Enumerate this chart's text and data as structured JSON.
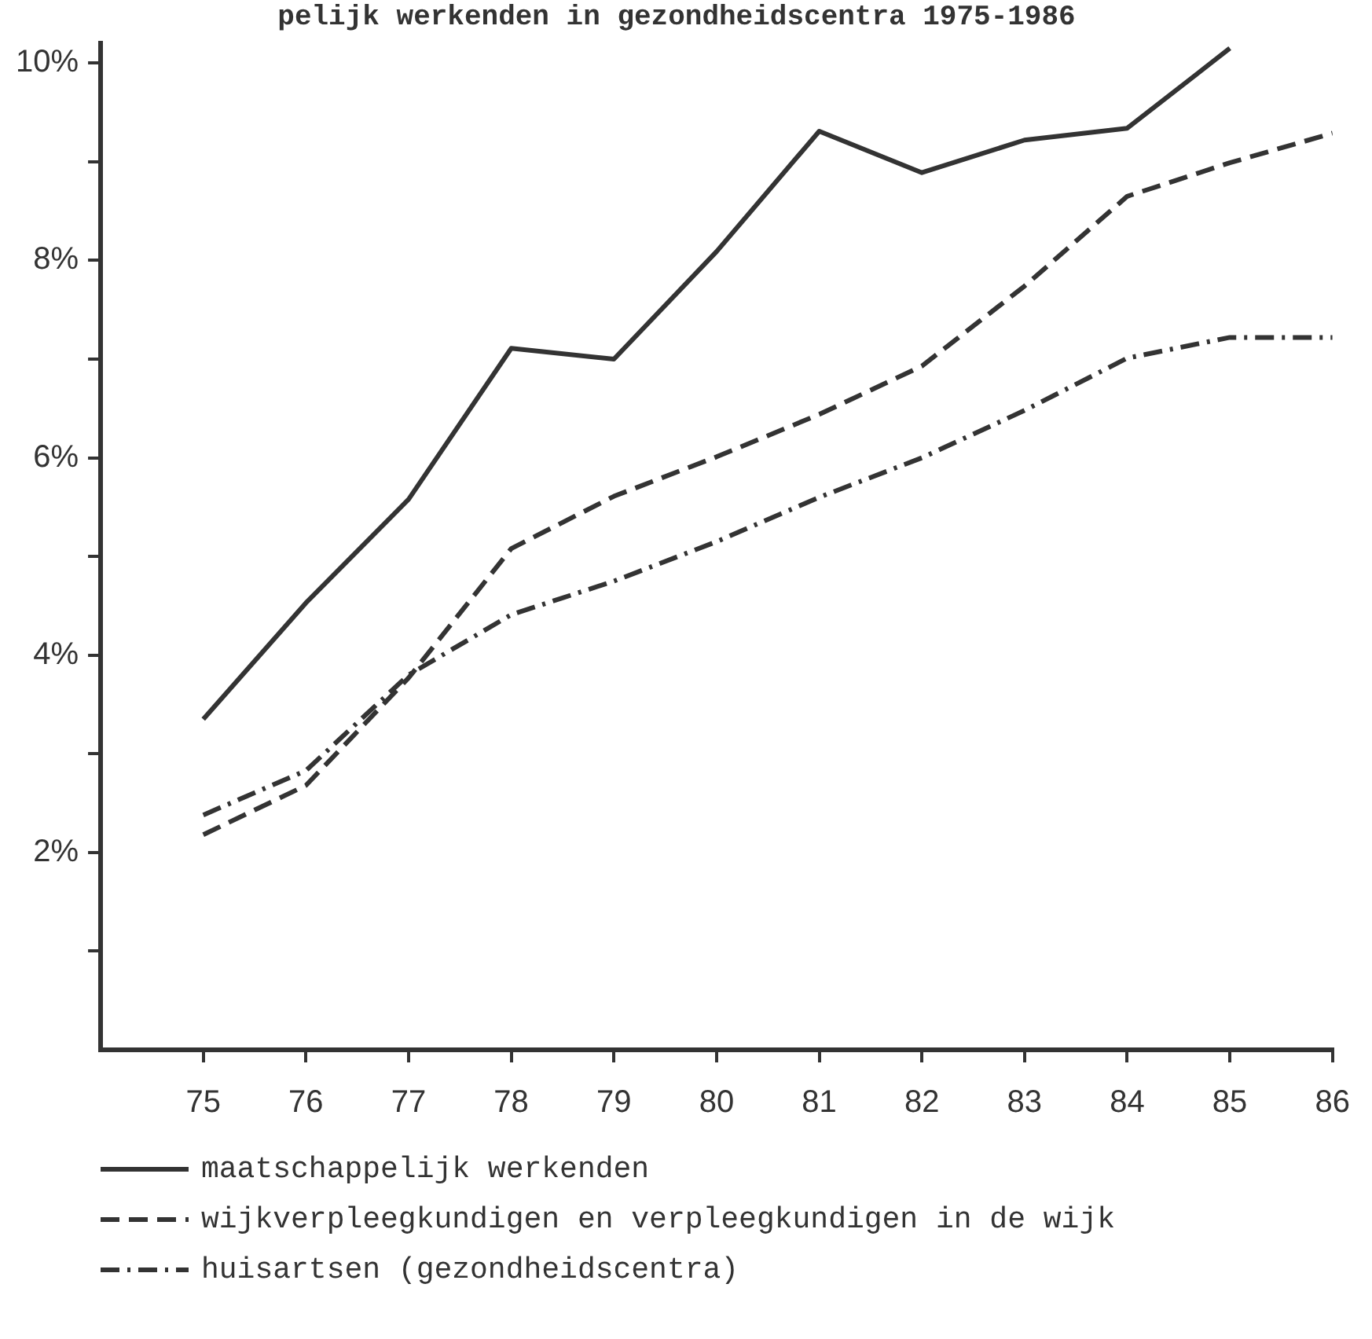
{
  "chart_data": {
    "type": "line",
    "title": "pelijk werkenden in gezondheidscentra 1975-1986",
    "x": [
      75,
      76,
      77,
      78,
      79,
      80,
      81,
      82,
      83,
      84,
      85,
      86
    ],
    "xlim": [
      74,
      86
    ],
    "xticks": [
      75,
      76,
      77,
      78,
      79,
      80,
      81,
      82,
      83,
      84,
      85,
      86
    ],
    "ylim": [
      0,
      10.2
    ],
    "yticks": [
      {
        "value": 1,
        "label": null
      },
      {
        "value": 2,
        "label": "2%"
      },
      {
        "value": 3,
        "label": null
      },
      {
        "value": 4,
        "label": "4%"
      },
      {
        "value": 5,
        "label": null
      },
      {
        "value": 6,
        "label": "6%"
      },
      {
        "value": 7,
        "label": null
      },
      {
        "value": 8,
        "label": "8%"
      },
      {
        "value": 9,
        "label": null
      },
      {
        "value": 10,
        "label": "10%"
      }
    ],
    "grid": false,
    "legend": "bottom",
    "marker": "none",
    "series": [
      {
        "name": "maatschappelijk werkenden",
        "color": "#333333",
        "line_style": "solid",
        "values": [
          3.35,
          4.53,
          5.58,
          7.11,
          7.0,
          8.09,
          9.31,
          8.89,
          9.22,
          9.34,
          10.15,
          null
        ]
      },
      {
        "name": "wijkverpleegkundigen en verpleegkundigen in de wijk",
        "color": "#333333",
        "line_style": "dashed",
        "values": [
          2.18,
          2.68,
          3.77,
          5.08,
          5.61,
          6.01,
          6.44,
          6.93,
          7.74,
          8.65,
          8.99,
          9.29
        ]
      },
      {
        "name": "huisartsen (gezondheidscentra)",
        "color": "#333333",
        "line_style": "dashdot",
        "values": [
          2.38,
          2.83,
          3.8,
          4.41,
          4.75,
          5.15,
          5.6,
          6.0,
          6.48,
          7.01,
          7.22,
          7.22
        ]
      }
    ]
  }
}
